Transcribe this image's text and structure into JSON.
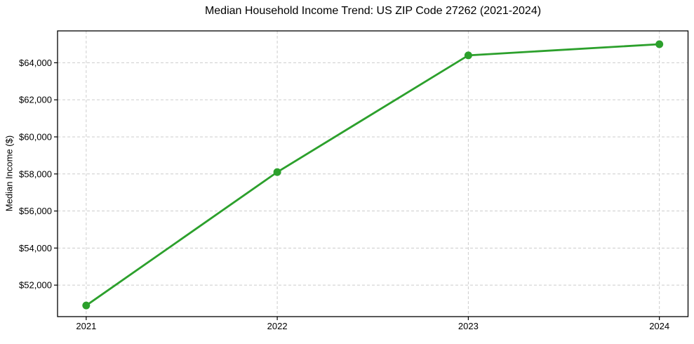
{
  "chart_data": {
    "type": "line",
    "title": "Median Household Income Trend: US ZIP Code 27262 (2021-2024)",
    "xlabel": "",
    "ylabel": "Median Income ($)",
    "x": [
      2021,
      2022,
      2023,
      2024
    ],
    "x_tick_labels": [
      "2021",
      "2022",
      "2023",
      "2024"
    ],
    "y_ticks": [
      52000,
      54000,
      56000,
      58000,
      60000,
      62000,
      64000
    ],
    "y_tick_labels": [
      "$52,000",
      "$54,000",
      "$56,000",
      "$58,000",
      "$60,000",
      "$62,000",
      "$64,000"
    ],
    "series": [
      {
        "name": "Median Household Income",
        "values": [
          50900,
          58100,
          64400,
          65000
        ],
        "color": "#2ca02c",
        "marker": "circle"
      }
    ],
    "xlim": [
      2020.85,
      2024.15
    ],
    "ylim": [
      50300,
      65720
    ],
    "grid": true,
    "grid_style": "dashed",
    "legend": false,
    "colors": {
      "line": "#2ca02c",
      "grid": "#cccccc",
      "axis": "#000000",
      "text": "#000000",
      "background": "#ffffff"
    },
    "line_width": 2.8,
    "marker_diameter": 11
  }
}
